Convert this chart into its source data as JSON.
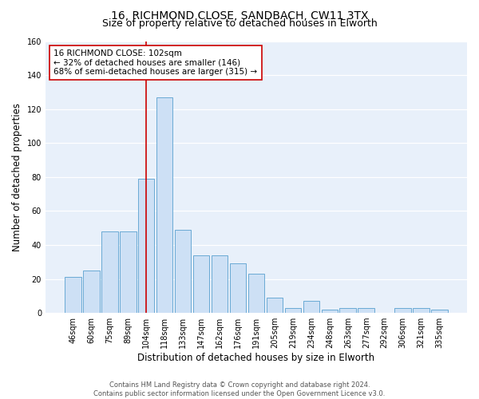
{
  "title_line1": "16, RICHMOND CLOSE, SANDBACH, CW11 3TX",
  "title_line2": "Size of property relative to detached houses in Elworth",
  "xlabel": "Distribution of detached houses by size in Elworth",
  "ylabel": "Number of detached properties",
  "categories": [
    "46sqm",
    "60sqm",
    "75sqm",
    "89sqm",
    "104sqm",
    "118sqm",
    "133sqm",
    "147sqm",
    "162sqm",
    "176sqm",
    "191sqm",
    "205sqm",
    "219sqm",
    "234sqm",
    "248sqm",
    "263sqm",
    "277sqm",
    "292sqm",
    "306sqm",
    "321sqm",
    "335sqm"
  ],
  "values": [
    21,
    25,
    48,
    48,
    79,
    127,
    49,
    34,
    34,
    29,
    23,
    9,
    3,
    7,
    2,
    3,
    3,
    0,
    3,
    3,
    2
  ],
  "bar_color": "#cde0f5",
  "bar_edge_color": "#6aaad4",
  "vline_color": "#cc0000",
  "vline_x": 4.0,
  "annotation_text": "16 RICHMOND CLOSE: 102sqm\n← 32% of detached houses are smaller (146)\n68% of semi-detached houses are larger (315) →",
  "annotation_box_color": "white",
  "annotation_box_edge_color": "#cc0000",
  "footnote": "Contains HM Land Registry data © Crown copyright and database right 2024.\nContains public sector information licensed under the Open Government Licence v3.0.",
  "ylim": [
    0,
    160
  ],
  "yticks": [
    0,
    20,
    40,
    60,
    80,
    100,
    120,
    140,
    160
  ],
  "bg_color": "#e8f0fa",
  "grid_color": "white",
  "title_fontsize": 10,
  "subtitle_fontsize": 9,
  "tick_fontsize": 7,
  "ylabel_fontsize": 8.5,
  "xlabel_fontsize": 8.5,
  "annotation_fontsize": 7.5,
  "footnote_fontsize": 6.0
}
